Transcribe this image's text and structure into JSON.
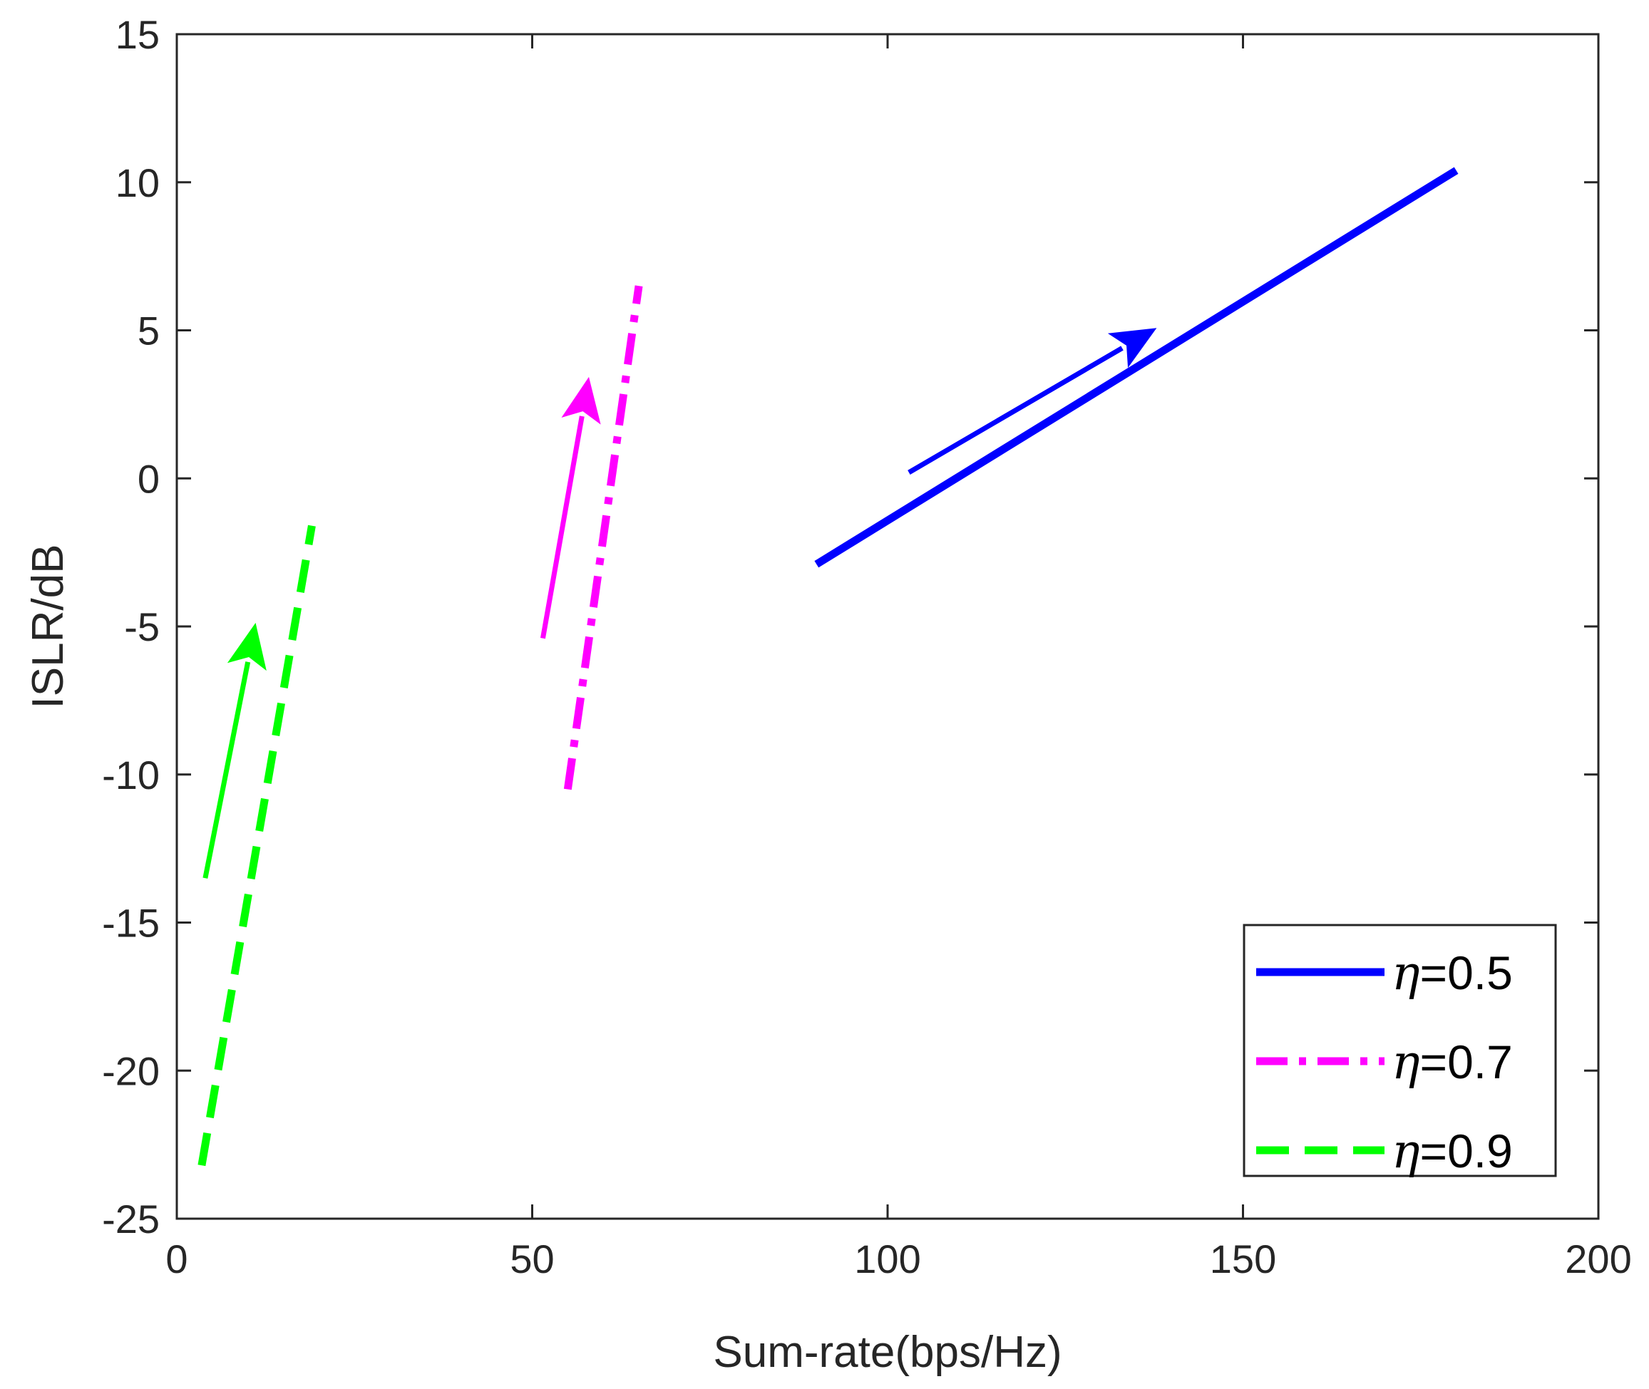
{
  "chart_data": {
    "type": "line",
    "title": "",
    "xlabel": "Sum-rate(bps/Hz)",
    "ylabel": "ISLR/dB",
    "xlim": [
      0,
      200
    ],
    "ylim": [
      -25,
      15
    ],
    "xticks": [
      0,
      50,
      100,
      150,
      200
    ],
    "yticks": [
      -25,
      -20,
      -15,
      -10,
      -5,
      0,
      5,
      10,
      15
    ],
    "xtick_labels": [
      "0",
      "50",
      "100",
      "150",
      "200"
    ],
    "ytick_labels": [
      "-25",
      "-20",
      "-15",
      "-10",
      "-5",
      "0",
      "5",
      "10",
      "15"
    ],
    "grid": false,
    "legend_position": "bottom-right",
    "series": [
      {
        "name": "η=0.5",
        "legend_symbol": "η",
        "legend_value": "=0.5",
        "color": "#0000FF",
        "dash": "solid",
        "x": [
          90,
          180
        ],
        "y": [
          -2.9,
          10.4
        ],
        "arrow": {
          "from": [
            103,
            0.2
          ],
          "to": [
            133,
            4.4
          ]
        }
      },
      {
        "name": "η=0.7",
        "legend_symbol": "η",
        "legend_value": "=0.7",
        "color": "#FF00FF",
        "dash": "dashdot",
        "x": [
          55,
          65
        ],
        "y": [
          -10.5,
          6.5
        ],
        "arrow": {
          "from": [
            51.5,
            -5.4
          ],
          "to": [
            57,
            2.1
          ]
        }
      },
      {
        "name": "η=0.9",
        "legend_symbol": "η",
        "legend_value": "=0.9",
        "color": "#00FF00",
        "dash": "dashed",
        "x": [
          3.5,
          19
        ],
        "y": [
          -23.2,
          -1.6
        ],
        "arrow": {
          "from": [
            4,
            -13.5
          ],
          "to": [
            10,
            -6.2
          ]
        }
      }
    ]
  }
}
